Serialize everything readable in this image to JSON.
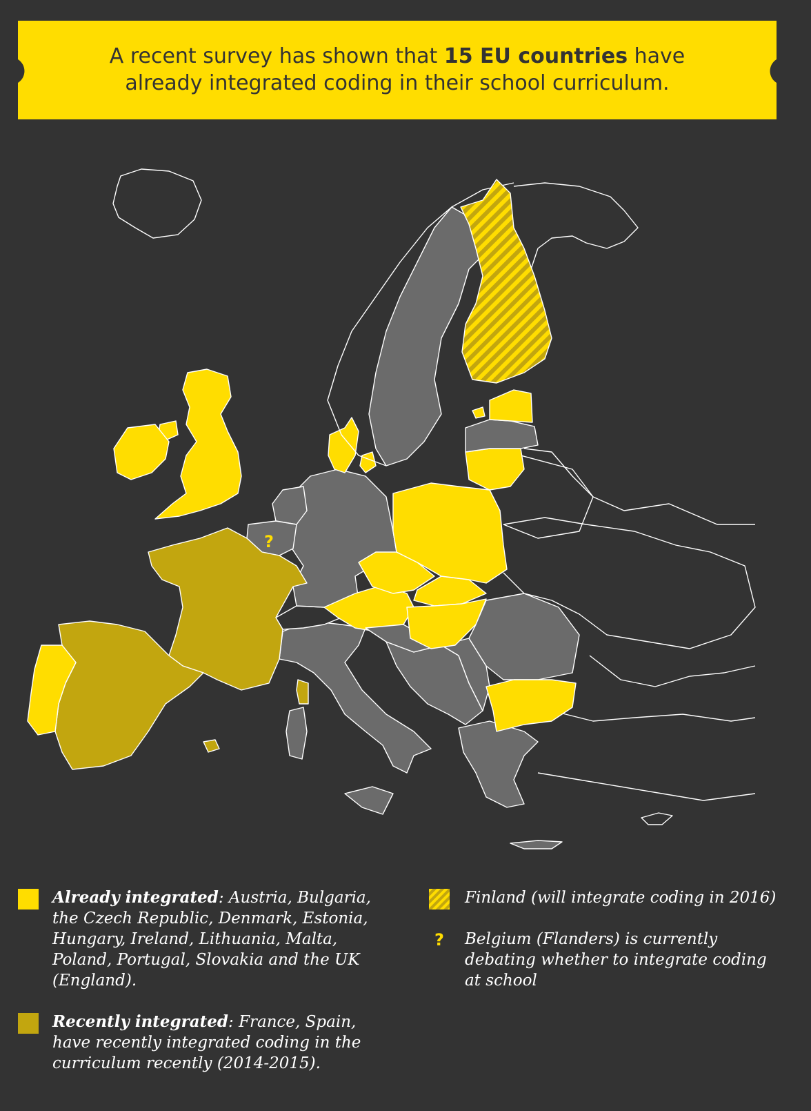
{
  "colors": {
    "background": "#333333",
    "already_integrated": "#FFDD00",
    "recently_integrated": "#C2A60F",
    "not_integrated": "#6B6B6B",
    "borders": "#FFFFFF"
  },
  "header": {
    "line1_before": "A recent survey has shown that ",
    "line1_bold": "15 EU countries",
    "line1_after": " have",
    "line2": "already integrated coding in their school curriculum."
  },
  "map": {
    "belgium_marker": "?",
    "icons": [
      "hatched-finland",
      "question-mark-belgium"
    ]
  },
  "legend": {
    "already": {
      "label": "Already integrated",
      "separator": ": ",
      "countries_line1": "Austria, Bulgaria,",
      "countries_line2": "the Czech Republic, Denmark, Estonia,",
      "countries_line3": "Hungary, Ireland, Lithuania, Malta,",
      "countries_line4": "Poland, Portugal, Slovakia and the UK",
      "countries_line5": "(England)."
    },
    "recently": {
      "label": "Recently integrated",
      "separator": ": ",
      "text_line1": "France, Spain,",
      "text_line2": "have recently integrated coding in the",
      "text_line3": "curriculum recently (2014-2015)."
    },
    "finland": {
      "text": "Finland (will integrate coding in 2016)"
    },
    "belgium": {
      "marker": "?",
      "line1": "Belgium (Flanders) is currently",
      "line2": "debating whether to integrate coding",
      "line3": "at school"
    }
  }
}
